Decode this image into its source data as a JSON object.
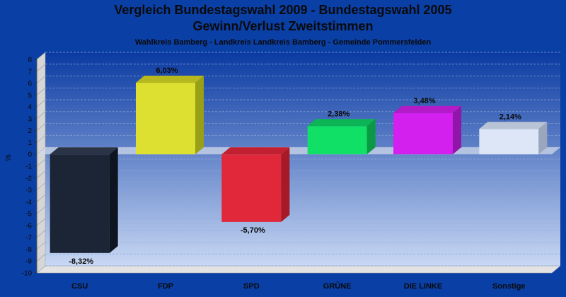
{
  "header": {
    "title_line1": "Vergleich Bundestagswahl 2009 - Bundestagswahl 2005",
    "title_line2": "Gewinn/Verlust Zweitstimmen",
    "subtitle": "Wahlkreis Bamberg - Landkreis Landkreis Bamberg - Gemeinde Pommersfelden"
  },
  "chart_data": {
    "type": "bar",
    "title": "Vergleich Bundestagswahl 2009 - Bundestagswahl 2005 Gewinn/Verlust Zweitstimmen",
    "subtitle": "Wahlkreis Bamberg - Landkreis Landkreis Bamberg - Gemeinde Pommersfelden",
    "xlabel": "",
    "ylabel": "%",
    "ylim": [
      -10,
      8
    ],
    "yticks": [
      8,
      7,
      6,
      5,
      4,
      3,
      2,
      1,
      0,
      -1,
      -2,
      -3,
      -4,
      -5,
      -6,
      -7,
      -8,
      -9,
      -10
    ],
    "grid": true,
    "categories": [
      "CSU",
      "FDP",
      "SPD",
      "GRÜNE",
      "DIE LINKE",
      "Sonstige"
    ],
    "values": [
      -8.32,
      6.03,
      -5.7,
      2.38,
      3.48,
      2.14
    ],
    "data_labels": [
      "-8,32%",
      "6,03%",
      "-5,70%",
      "2,38%",
      "3,48%",
      "2,14%"
    ],
    "colors": [
      "#1b2535",
      "#dde031",
      "#e0283a",
      "#10e065",
      "#d320ee",
      "#dce6f6"
    ],
    "side_colors": [
      "#0e1420",
      "#9aa016",
      "#a51a26",
      "#0a9a45",
      "#9015a8",
      "#9aa6bb"
    ],
    "top_colors": [
      "#2a3446",
      "#b6b81e",
      "#c0202f",
      "#0db455",
      "#b31ac8",
      "#b8c4d6"
    ]
  }
}
